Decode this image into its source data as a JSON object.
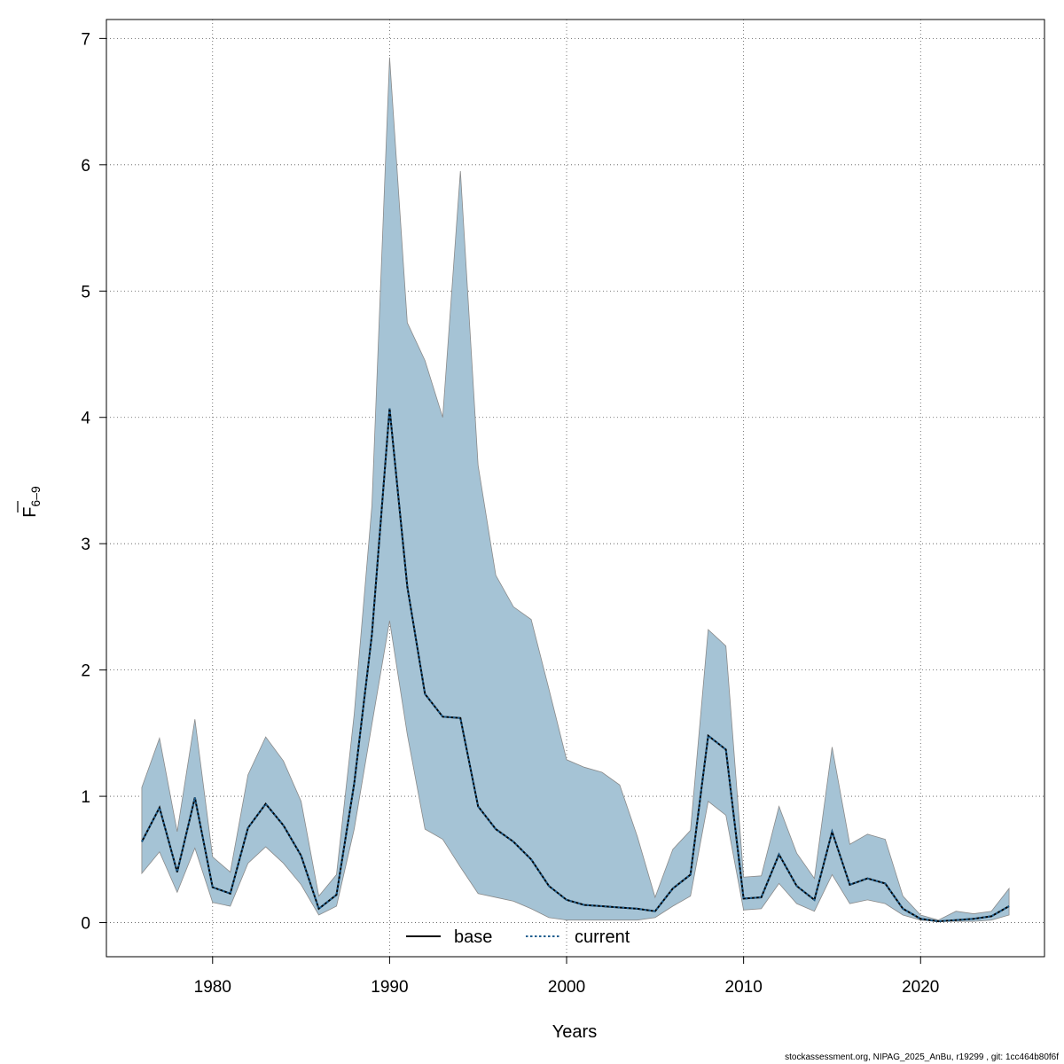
{
  "chart_data": {
    "type": "area",
    "title": "",
    "xlabel": "Years",
    "ylabel": {
      "main": "F",
      "sub": "6–9"
    },
    "xlim": [
      1974,
      2027
    ],
    "ylim": [
      -0.27,
      7.15
    ],
    "x_ticks": [
      1980,
      1990,
      2000,
      2010,
      2020
    ],
    "x_tick_labels": [
      "1980",
      "1990",
      "2000",
      "2010",
      "2020"
    ],
    "y_ticks": [
      0,
      1,
      2,
      3,
      4,
      5,
      6,
      7
    ],
    "y_tick_labels": [
      "0",
      "1",
      "2",
      "3",
      "4",
      "5",
      "6",
      "7"
    ],
    "grid": true,
    "legend_position": "bottom",
    "colors": {
      "band": "#a5c3d5",
      "band_edge": "#8a8a8a",
      "base": "#000000",
      "current": "#1f5f8f",
      "grid": "#555555"
    },
    "x": [
      1976,
      1977,
      1978,
      1979,
      1980,
      1981,
      1982,
      1983,
      1984,
      1985,
      1986,
      1987,
      1988,
      1989,
      1990,
      1991,
      1992,
      1993,
      1994,
      1995,
      1996,
      1997,
      1998,
      1999,
      2000,
      2001,
      2002,
      2003,
      2004,
      2005,
      2006,
      2007,
      2008,
      2009,
      2010,
      2011,
      2012,
      2013,
      2014,
      2015,
      2016,
      2017,
      2018,
      2019,
      2020,
      2021,
      2022,
      2023,
      2024,
      2025
    ],
    "upper": [
      1.07,
      1.46,
      0.72,
      1.61,
      0.52,
      0.4,
      1.17,
      1.47,
      1.28,
      0.96,
      0.21,
      0.38,
      1.65,
      3.3,
      6.85,
      4.75,
      4.45,
      4.0,
      5.95,
      3.62,
      2.75,
      2.5,
      2.4,
      1.85,
      1.29,
      1.23,
      1.19,
      1.09,
      0.68,
      0.2,
      0.58,
      0.73,
      2.32,
      2.19,
      0.36,
      0.37,
      0.92,
      0.55,
      0.35,
      1.39,
      0.62,
      0.7,
      0.66,
      0.21,
      0.06,
      0.02,
      0.09,
      0.07,
      0.09,
      0.27
    ],
    "lower": [
      0.39,
      0.56,
      0.24,
      0.59,
      0.16,
      0.13,
      0.47,
      0.6,
      0.47,
      0.3,
      0.06,
      0.13,
      0.74,
      1.57,
      2.39,
      1.49,
      0.74,
      0.66,
      0.44,
      0.23,
      0.2,
      0.17,
      0.11,
      0.04,
      0.02,
      0.02,
      0.02,
      0.02,
      0.02,
      0.04,
      0.13,
      0.21,
      0.96,
      0.85,
      0.1,
      0.11,
      0.31,
      0.15,
      0.09,
      0.38,
      0.15,
      0.18,
      0.15,
      0.06,
      0.02,
      0.01,
      0.01,
      0.01,
      0.02,
      0.06
    ],
    "series": [
      {
        "name": "base",
        "style": "solid",
        "values": [
          0.64,
          0.91,
          0.4,
          0.99,
          0.28,
          0.23,
          0.75,
          0.94,
          0.77,
          0.53,
          0.11,
          0.22,
          1.1,
          2.28,
          4.07,
          2.66,
          1.81,
          1.63,
          1.62,
          0.92,
          0.74,
          0.64,
          0.5,
          0.29,
          0.18,
          0.14,
          0.13,
          0.12,
          0.11,
          0.09,
          0.27,
          0.38,
          1.48,
          1.37,
          0.19,
          0.2,
          0.54,
          0.29,
          0.18,
          0.72,
          0.3,
          0.35,
          0.31,
          0.11,
          0.03,
          0.01,
          0.02,
          0.03,
          0.05,
          0.13
        ]
      },
      {
        "name": "current",
        "style": "dotted",
        "values": [
          0.64,
          0.91,
          0.4,
          0.99,
          0.28,
          0.23,
          0.75,
          0.94,
          0.77,
          0.53,
          0.11,
          0.22,
          1.1,
          2.28,
          4.07,
          2.66,
          1.81,
          1.63,
          1.62,
          0.92,
          0.74,
          0.64,
          0.5,
          0.29,
          0.18,
          0.14,
          0.13,
          0.12,
          0.11,
          0.09,
          0.27,
          0.38,
          1.48,
          1.37,
          0.19,
          0.2,
          0.54,
          0.29,
          0.18,
          0.72,
          0.3,
          0.35,
          0.31,
          0.11,
          0.03,
          0.01,
          0.02,
          0.03,
          0.05,
          0.13
        ]
      }
    ]
  },
  "footer": "stockassessment.org, NIPAG_2025_AnBu, r19299 , git: 1cc464b80f6f"
}
